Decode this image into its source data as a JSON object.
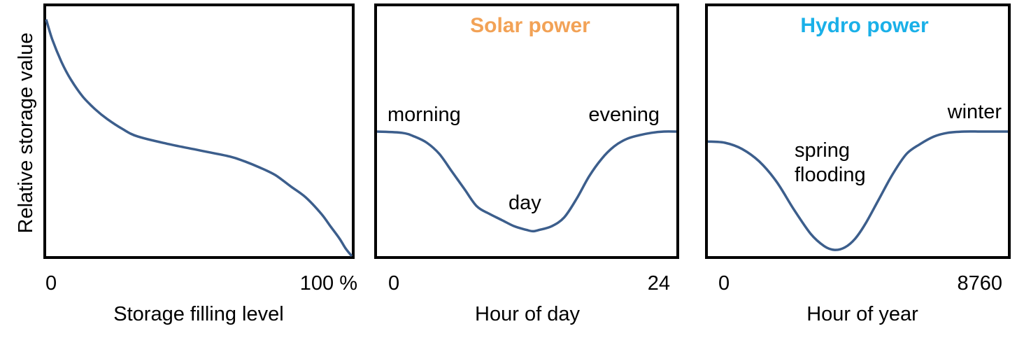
{
  "y_axis_label": "Relative storage value",
  "colors": {
    "curve": "#3c5e8c",
    "solar_title": "#f2a256",
    "hydro_title": "#1ab0e8",
    "frame": "#000000"
  },
  "chart_data": [
    {
      "type": "line",
      "title": "",
      "xlabel": "Storage filling level",
      "ylabel": "Relative storage value",
      "x_ticks": [
        "0",
        "100 %"
      ],
      "xlim": [
        0,
        100
      ],
      "ylim": [
        0,
        1
      ],
      "grid": false,
      "annotations": [],
      "series": [
        {
          "x": [
            0,
            2,
            5,
            8,
            12,
            16,
            20,
            25,
            30,
            40,
            50,
            60,
            65,
            70,
            75,
            80,
            85,
            90,
            93,
            96,
            98,
            100
          ],
          "y": [
            0.95,
            0.87,
            0.78,
            0.71,
            0.64,
            0.59,
            0.55,
            0.51,
            0.48,
            0.45,
            0.425,
            0.4,
            0.38,
            0.355,
            0.325,
            0.28,
            0.235,
            0.17,
            0.12,
            0.07,
            0.03,
            0.0
          ]
        }
      ]
    },
    {
      "type": "line",
      "title": "Solar power",
      "xlabel": "Hour of day",
      "ylabel": "",
      "x_ticks": [
        "0",
        "24"
      ],
      "xlim": [
        0,
        24
      ],
      "ylim": [
        0,
        1
      ],
      "grid": false,
      "annotations": [
        "morning",
        "day",
        "evening"
      ],
      "series": [
        {
          "x": [
            0,
            2,
            3,
            4,
            5,
            6,
            7,
            8,
            9,
            10,
            11,
            12,
            12.5,
            13,
            14,
            15,
            16,
            17,
            18,
            19,
            20,
            21,
            22,
            23,
            24
          ],
          "y": [
            0.5,
            0.495,
            0.48,
            0.455,
            0.41,
            0.34,
            0.27,
            0.2,
            0.17,
            0.145,
            0.12,
            0.105,
            0.1,
            0.105,
            0.12,
            0.155,
            0.23,
            0.32,
            0.39,
            0.44,
            0.47,
            0.485,
            0.495,
            0.5,
            0.5
          ]
        }
      ]
    },
    {
      "type": "line",
      "title": "Hydro power",
      "xlabel": "Hour of year",
      "ylabel": "",
      "x_ticks": [
        "0",
        "8760"
      ],
      "xlim": [
        0,
        8760
      ],
      "ylim": [
        0,
        1
      ],
      "grid": false,
      "annotations": [
        "spring flooding",
        "winter"
      ],
      "series": [
        {
          "x": [
            0,
            500,
            1000,
            1500,
            2000,
            2500,
            3000,
            3400,
            3700,
            4000,
            4300,
            4600,
            5000,
            5400,
            5800,
            6200,
            6600,
            7000,
            7500,
            8000,
            8760
          ],
          "y": [
            0.46,
            0.455,
            0.43,
            0.38,
            0.3,
            0.19,
            0.09,
            0.04,
            0.025,
            0.035,
            0.07,
            0.13,
            0.23,
            0.33,
            0.41,
            0.45,
            0.48,
            0.495,
            0.5,
            0.5,
            0.5
          ]
        }
      ]
    }
  ]
}
